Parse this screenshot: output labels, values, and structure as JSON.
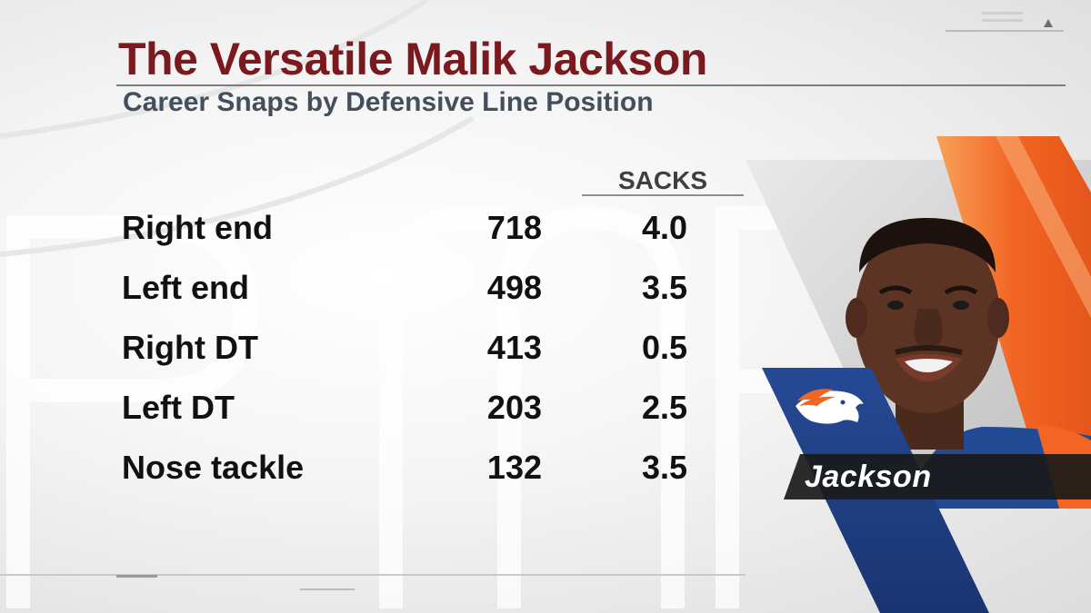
{
  "title": "The Versatile Malik Jackson",
  "subtitle": "Career Snaps by Defensive Line Position",
  "table": {
    "sacks_header": "SACKS",
    "rows": [
      {
        "position": "Right end",
        "snaps": "718",
        "sacks": "4.0"
      },
      {
        "position": "Left end",
        "snaps": "498",
        "sacks": "3.5"
      },
      {
        "position": "Right DT",
        "snaps": "413",
        "sacks": "0.5"
      },
      {
        "position": "Left DT",
        "snaps": "203",
        "sacks": "2.5"
      },
      {
        "position": "Nose tackle",
        "snaps": "132",
        "sacks": "3.5"
      }
    ]
  },
  "player": {
    "name_label": "Jackson",
    "team_logo": "broncos-logo"
  },
  "colors": {
    "title": "#7a1a1e",
    "subtitle": "#454f5c",
    "orange": "#f26522",
    "navy": "#1f3f86"
  }
}
